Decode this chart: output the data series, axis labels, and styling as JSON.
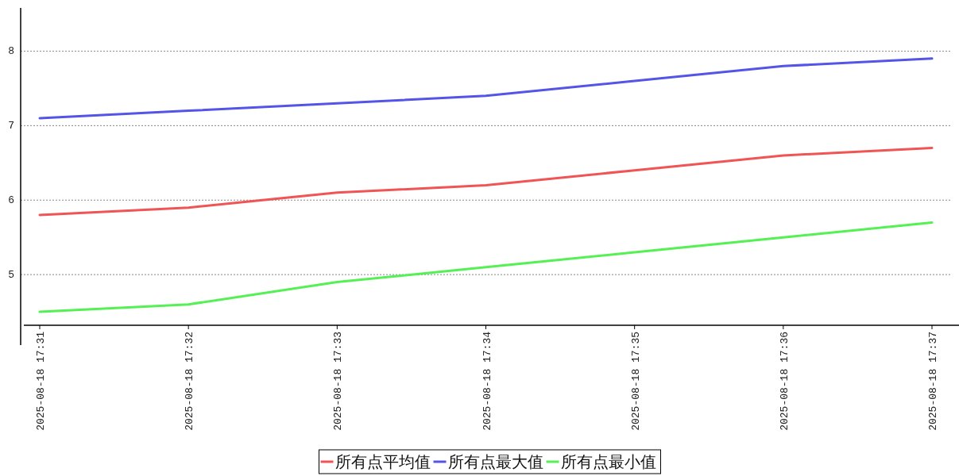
{
  "chart_data": {
    "type": "line",
    "categories": [
      "2025-08-18 17:31",
      "2025-08-18 17:32",
      "2025-08-18 17:33",
      "2025-08-18 17:34",
      "2025-08-18 17:35",
      "2025-08-18 17:36",
      "2025-08-18 17:37"
    ],
    "series": [
      {
        "name": "所有点平均值",
        "color": "#f05454",
        "values": [
          5.8,
          5.9,
          6.1,
          6.2,
          6.4,
          6.6,
          6.7
        ]
      },
      {
        "name": "所有点最大值",
        "color": "#5454e8",
        "values": [
          7.1,
          7.2,
          7.3,
          7.4,
          7.6,
          7.8,
          7.9
        ]
      },
      {
        "name": "所有点最小值",
        "color": "#54f054",
        "values": [
          4.5,
          4.6,
          4.9,
          5.1,
          5.3,
          5.5,
          5.7
        ]
      }
    ],
    "ylim": [
      4.32,
      8.58
    ],
    "yticks": [
      5,
      6,
      7,
      8
    ],
    "grid": "y",
    "legend": "bottom"
  }
}
